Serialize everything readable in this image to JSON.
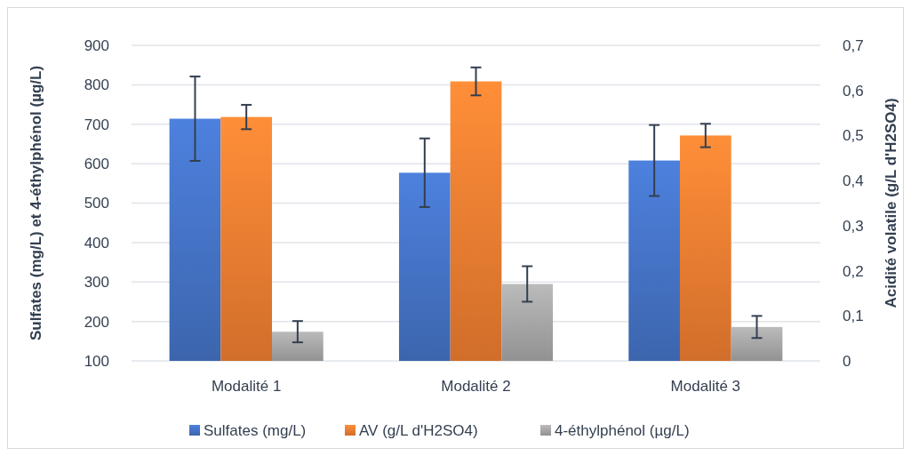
{
  "chart_data": {
    "type": "bar",
    "ylabel": "Sulfates (mg/L) et 4-éthylphénol (µg/L)",
    "y2label": "Acidité volatile (g/L d'H2SO4)",
    "categories": [
      "Modalité 1",
      "Modalité 2",
      "Modalité 3"
    ],
    "series": [
      {
        "name": "Sulfates (mg/L)",
        "color": "#4472c4",
        "values": [
          714,
          577,
          608
        ],
        "errors": [
          107,
          87,
          90
        ]
      },
      {
        "name": "AV (g/L d'H2SO4)",
        "color": "#ed7d31",
        "values": [
          0.541,
          0.62,
          0.5
        ],
        "errors": [
          0.027,
          0.031,
          0.026
        ],
        "axis": "y2"
      },
      {
        "name": "4-éthylphénol (µg/L)",
        "color": "#a5a5a5",
        "values": [
          174,
          295,
          186
        ],
        "errors": [
          27,
          45,
          28
        ]
      }
    ],
    "ylim": [
      100,
      900
    ],
    "yticks": [
      100,
      200,
      300,
      400,
      500,
      600,
      700,
      800,
      900
    ],
    "y2lim": [
      0,
      0.7
    ],
    "y2ticks": [
      0,
      {
        "value": 0.1,
        "label": "0,1"
      },
      {
        "value": 0.2,
        "label": "0,2"
      },
      {
        "value": 0.3,
        "label": "0,3"
      },
      {
        "value": 0.4,
        "label": "0,4"
      },
      {
        "value": 0.5,
        "label": "0,5"
      },
      {
        "value": 0.6,
        "label": "0,6"
      },
      {
        "value": 0.7,
        "label": "0,7"
      }
    ],
    "grid": "y",
    "legend": "bottom"
  }
}
